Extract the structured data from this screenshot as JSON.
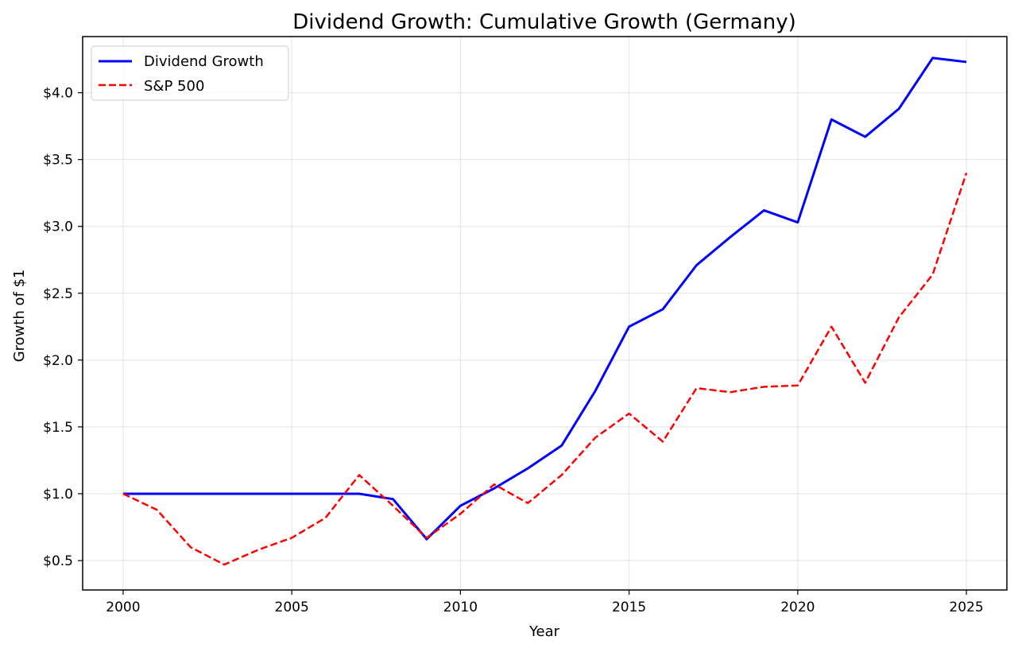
{
  "chart_data": {
    "type": "line",
    "title": "Dividend Growth: Cumulative Growth (Germany)",
    "xlabel": "Year",
    "ylabel": "Growth of $1",
    "xlim": [
      1998.8,
      2026.2
    ],
    "ylim": [
      0.28,
      4.42
    ],
    "xticks": [
      2000,
      2005,
      2010,
      2015,
      2020,
      2025
    ],
    "xtick_labels": [
      "2000",
      "2005",
      "2010",
      "2015",
      "2020",
      "2025"
    ],
    "yticks": [
      0.5,
      1.0,
      1.5,
      2.0,
      2.5,
      3.0,
      3.5,
      4.0
    ],
    "ytick_labels": [
      "$0.5",
      "$1.0",
      "$1.5",
      "$2.0",
      "$2.5",
      "$3.0",
      "$3.5",
      "$4.0"
    ],
    "grid": true,
    "legend_position": "top-left",
    "x": [
      2000,
      2001,
      2002,
      2003,
      2004,
      2005,
      2006,
      2007,
      2008,
      2009,
      2010,
      2011,
      2012,
      2013,
      2014,
      2015,
      2016,
      2017,
      2018,
      2019,
      2020,
      2021,
      2022,
      2023,
      2024,
      2025
    ],
    "series": [
      {
        "name": "Dividend Growth",
        "color": "#0000ff",
        "style": "solid",
        "values": [
          1.0,
          1.0,
          1.0,
          1.0,
          1.0,
          1.0,
          1.0,
          1.0,
          0.96,
          0.66,
          0.91,
          1.04,
          1.19,
          1.36,
          1.77,
          2.25,
          2.38,
          2.71,
          2.92,
          3.12,
          3.03,
          3.8,
          3.67,
          3.88,
          4.26,
          4.23
        ]
      },
      {
        "name": "S&P 500",
        "color": "#ff0000",
        "style": "dashed",
        "values": [
          1.0,
          0.88,
          0.6,
          0.47,
          0.58,
          0.67,
          0.82,
          1.14,
          0.91,
          0.67,
          0.85,
          1.07,
          0.93,
          1.14,
          1.42,
          1.6,
          1.39,
          1.79,
          1.76,
          1.8,
          1.81,
          2.25,
          1.83,
          2.32,
          2.64,
          3.4
        ]
      }
    ]
  }
}
